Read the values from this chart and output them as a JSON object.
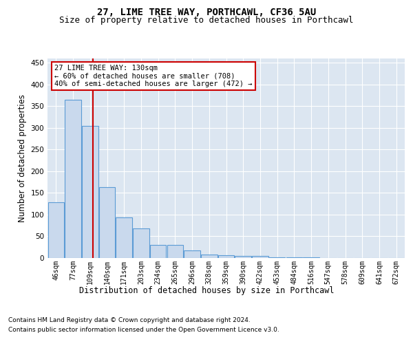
{
  "title_line1": "27, LIME TREE WAY, PORTHCAWL, CF36 5AU",
  "title_line2": "Size of property relative to detached houses in Porthcawl",
  "xlabel": "Distribution of detached houses by size in Porthcawl",
  "ylabel": "Number of detached properties",
  "bin_labels": [
    "46sqm",
    "77sqm",
    "109sqm",
    "140sqm",
    "171sqm",
    "203sqm",
    "234sqm",
    "265sqm",
    "296sqm",
    "328sqm",
    "359sqm",
    "390sqm",
    "422sqm",
    "453sqm",
    "484sqm",
    "516sqm",
    "547sqm",
    "578sqm",
    "609sqm",
    "641sqm",
    "672sqm"
  ],
  "bar_values": [
    128,
    365,
    305,
    163,
    93,
    68,
    30,
    30,
    18,
    8,
    7,
    5,
    4,
    2,
    1,
    1,
    0,
    0,
    0,
    0,
    0
  ],
  "bar_color": "#c9d9ed",
  "bar_edge_color": "#5b9bd5",
  "annotation_text": "27 LIME TREE WAY: 130sqm\n← 60% of detached houses are smaller (708)\n40% of semi-detached houses are larger (472) →",
  "annotation_box_edge_color": "#cc0000",
  "vline_color": "#cc0000",
  "footer_line1": "Contains HM Land Registry data © Crown copyright and database right 2024.",
  "footer_line2": "Contains public sector information licensed under the Open Government Licence v3.0.",
  "ylim": [
    0,
    460
  ],
  "plot_background": "#dce6f1",
  "title_fontsize": 10,
  "subtitle_fontsize": 9,
  "axis_label_fontsize": 8.5,
  "tick_fontsize": 7,
  "footer_fontsize": 6.5,
  "annotation_fontsize": 7.5
}
